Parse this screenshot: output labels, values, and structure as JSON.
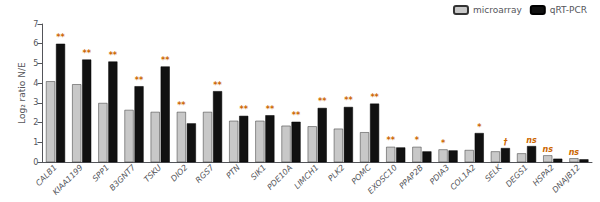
{
  "chart_data": {
    "type": "bar",
    "ylabel": "Log₂ ratio N/E",
    "categories": [
      "CALB1",
      "KIAA1199",
      "SPP1",
      "B3GNT7",
      "TSKU",
      "DIO2",
      "RGS7",
      "PTN",
      "SIK1",
      "PDE10A",
      "LIMCH1",
      "PLK2",
      "POMC",
      "EXOSC10",
      "PPAP2B",
      "PDIA3",
      "COL1A2",
      "SELK",
      "DEGS1",
      "HSPA2",
      "DNAJB12"
    ],
    "series": [
      {
        "name": "microarray",
        "color": "#c8c8c8",
        "values": [
          4.1,
          3.95,
          3.0,
          2.65,
          2.55,
          2.55,
          2.55,
          2.1,
          2.1,
          1.85,
          1.82,
          1.7,
          1.52,
          0.78,
          0.78,
          0.65,
          0.62,
          0.55,
          0.45,
          0.35,
          0.2
        ]
      },
      {
        "name": "qRT-PCR",
        "color": "#111111",
        "values": [
          6.0,
          5.2,
          5.1,
          3.85,
          4.85,
          1.97,
          3.6,
          2.35,
          2.38,
          2.05,
          2.75,
          2.8,
          2.97,
          0.75,
          0.55,
          0.6,
          1.48,
          0.72,
          0.82,
          0.18,
          0.15
        ]
      }
    ],
    "annotations": {
      "texts": [
        "**",
        "**",
        "**",
        "**",
        "**",
        "**",
        "**",
        "**",
        "**",
        "**",
        "**",
        "**",
        "**",
        "**",
        "*",
        "*",
        "*",
        "†",
        "ns",
        "ns",
        "ns"
      ],
      "color": "#cc6600"
    },
    "ylim": [
      0,
      7
    ],
    "yticks": [
      0,
      1,
      2,
      3,
      4,
      5,
      6,
      7
    ],
    "grid": false,
    "legend": "upper right"
  }
}
